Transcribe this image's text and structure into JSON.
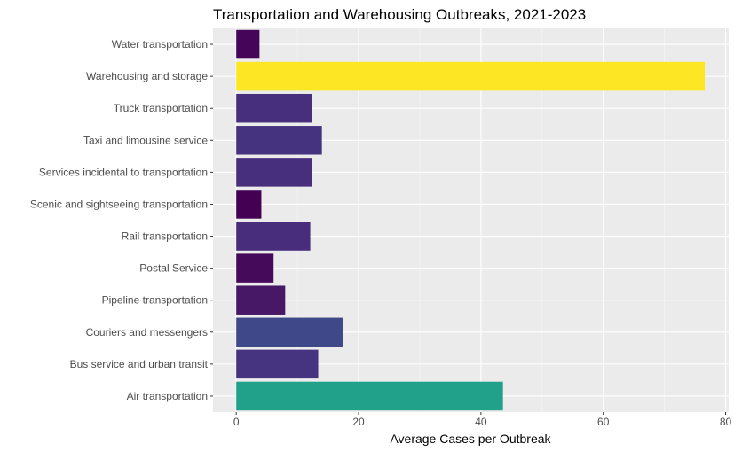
{
  "chart_data": {
    "type": "bar",
    "orientation": "horizontal",
    "title": "Transportation and Warehousing Outbreaks, 2021-2023",
    "xlabel": "Average Cases per Outbreak",
    "ylabel": "",
    "xlim": [
      -3.8,
      80.5
    ],
    "xticks": [
      0,
      20,
      40,
      60,
      80
    ],
    "grid": true,
    "background": "#ebebeb",
    "categories": [
      "Water transportation",
      "Warehousing and storage",
      "Truck transportation",
      "Taxi and limousine service",
      "Services incidental to transportation",
      "Scenic and sightseeing transportation",
      "Rail transportation",
      "Postal Service",
      "Pipeline transportation",
      "Couriers and messengers",
      "Bus service and urban transit",
      "Air transportation"
    ],
    "values": [
      3.8,
      76.6,
      12.4,
      14.0,
      12.4,
      4.1,
      12.1,
      6.1,
      8.0,
      17.5,
      13.4,
      43.6
    ],
    "colors": [
      "#45065a",
      "#fde725",
      "#472f7d",
      "#46337f",
      "#472f7d",
      "#440154",
      "#472d7b",
      "#450b5a",
      "#461865",
      "#3f4889",
      "#463480",
      "#21a08a"
    ]
  }
}
